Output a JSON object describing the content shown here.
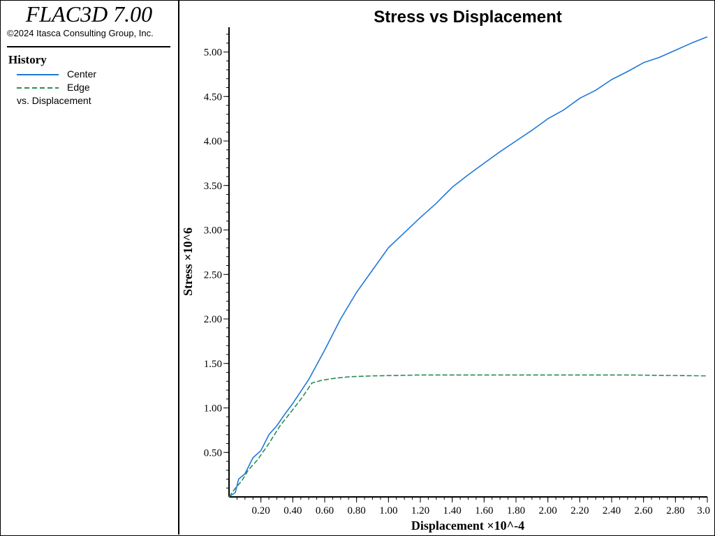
{
  "app": {
    "title": "FLAC3D 7.00",
    "copyright": "©2024 Itasca Consulting Group, Inc."
  },
  "legend": {
    "heading": "History",
    "items": [
      {
        "label": "Center",
        "color": "#1f78d8",
        "style": "solid"
      },
      {
        "label": "Edge",
        "color": "#2e8b57",
        "style": "dashed"
      }
    ],
    "vs_label": "vs. Displacement"
  },
  "chart_data": {
    "type": "line",
    "title": "Stress vs Displacement",
    "xlabel": "Displacement ×10^-4",
    "ylabel": "Stress ×10^6",
    "xlim": [
      0.0,
      3.0
    ],
    "ylim": [
      0.0,
      5.2
    ],
    "x_ticks": [
      "0.20",
      "0.40",
      "0.60",
      "0.80",
      "1.00",
      "1.20",
      "1.40",
      "1.60",
      "1.80",
      "2.00",
      "2.20",
      "2.40",
      "2.60",
      "2.80",
      "3.0"
    ],
    "y_ticks": [
      "0.50",
      "1.00",
      "1.50",
      "2.00",
      "2.50",
      "3.00",
      "3.50",
      "4.00",
      "4.50",
      "5.00"
    ],
    "grid": false,
    "series": [
      {
        "name": "Center",
        "color": "#1f78d8",
        "style": "solid",
        "x": [
          0.0,
          0.04,
          0.06,
          0.1,
          0.15,
          0.2,
          0.25,
          0.3,
          0.35,
          0.4,
          0.5,
          0.6,
          0.7,
          0.8,
          0.9,
          1.0,
          1.1,
          1.2,
          1.3,
          1.4,
          1.5,
          1.6,
          1.7,
          1.8,
          1.9,
          2.0,
          2.1,
          2.2,
          2.3,
          2.4,
          2.5,
          2.6,
          2.7,
          2.8,
          2.9,
          3.0
        ],
        "y": [
          0.0,
          0.05,
          0.2,
          0.26,
          0.44,
          0.52,
          0.7,
          0.8,
          0.93,
          1.05,
          1.32,
          1.65,
          2.0,
          2.3,
          2.55,
          2.8,
          2.97,
          3.14,
          3.3,
          3.48,
          3.62,
          3.75,
          3.88,
          4.0,
          4.12,
          4.25,
          4.35,
          4.48,
          4.57,
          4.69,
          4.78,
          4.88,
          4.94,
          5.02,
          5.1,
          5.17
        ]
      },
      {
        "name": "Edge",
        "color": "#2e8b57",
        "style": "dashed",
        "x": [
          0.0,
          0.04,
          0.08,
          0.12,
          0.18,
          0.25,
          0.32,
          0.4,
          0.46,
          0.52,
          0.58,
          0.65,
          0.75,
          0.9,
          1.2,
          1.5,
          2.0,
          2.5,
          3.0
        ],
        "y": [
          0.0,
          0.1,
          0.18,
          0.3,
          0.42,
          0.6,
          0.8,
          0.98,
          1.12,
          1.28,
          1.31,
          1.33,
          1.35,
          1.36,
          1.37,
          1.37,
          1.37,
          1.37,
          1.36
        ]
      }
    ]
  }
}
